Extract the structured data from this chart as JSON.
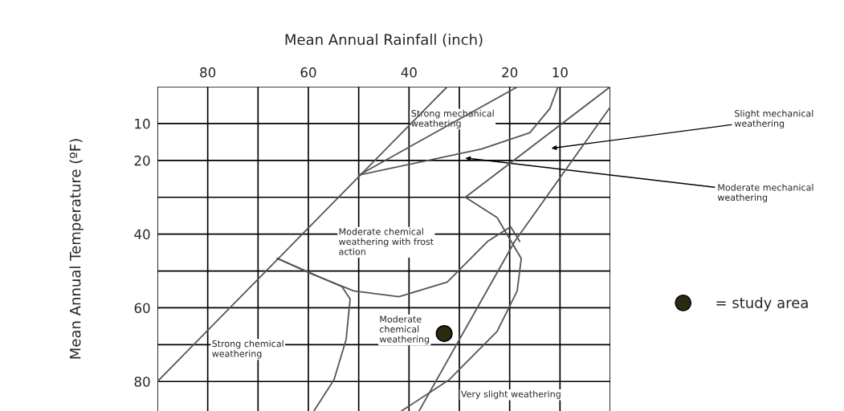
{
  "chart_data": {
    "type": "line",
    "xlabel": "Mean Annual Rainfall (inch)",
    "ylabel": "Mean Annual Temperature (ºF)",
    "xlim": [
      90,
      0
    ],
    "ylim": [
      88,
      0
    ],
    "xticks": [
      {
        "value": 90,
        "label": null
      },
      80,
      {
        "value": 70,
        "label": null
      },
      60,
      {
        "value": 50,
        "label": null
      },
      40,
      {
        "value": 30,
        "label": null
      },
      20,
      10,
      {
        "value": 0,
        "label": null
      }
    ],
    "yticks": [
      {
        "value": 0,
        "label": null
      },
      10,
      20,
      {
        "value": 30,
        "label": null
      },
      40,
      {
        "value": 50,
        "label": null
      },
      60,
      {
        "value": 70,
        "label": null
      },
      80
    ],
    "grid": true,
    "legend": "right",
    "marker": "none",
    "series": [
      {
        "color": "#555555",
        "x": [
          90,
          32.4
        ],
        "values": [
          80,
          0
        ]
      },
      {
        "color": "#555555",
        "x": [
          50,
          18.4
        ],
        "values": [
          24,
          0
        ]
      },
      {
        "color": "#555555",
        "x": [
          50,
          25.6,
          16,
          12,
          10.4
        ],
        "values": [
          24,
          16.9,
          12.5,
          5.9,
          0
        ]
      },
      {
        "color": "#555555",
        "x": [
          28.8,
          0
        ],
        "values": [
          30,
          0
        ]
      },
      {
        "color": "#555555",
        "x": [
          0,
          19,
          38
        ],
        "values": [
          5.5,
          42,
          88
        ]
      },
      {
        "color": "#555555",
        "x": [
          28.8,
          22.5,
          17.7,
          18.5,
          22.5,
          32,
          41.5
        ],
        "values": [
          30,
          35.5,
          46.6,
          55.4,
          66.4,
          79.5,
          88
        ]
      },
      {
        "color": "#555555",
        "x": [
          66.2,
          59,
          51,
          42,
          32.4,
          24.4,
          19.8,
          18
        ],
        "values": [
          46.6,
          51,
          55.4,
          57,
          53,
          42,
          38,
          42
        ]
      },
      {
        "color": "#555555",
        "x": [
          66.2,
          53.3,
          51.7,
          52.5,
          54.9,
          58.9
        ],
        "values": [
          46.6,
          54.3,
          57.6,
          68.6,
          79.5,
          88
        ]
      },
      {
        "type": "scatter",
        "name": "= study area",
        "color": "#2b2a10",
        "marker": "circle",
        "x": [
          33
        ],
        "values": [
          67
        ]
      }
    ],
    "annotations": [
      "Strong mechanical\nweathering",
      "Moderate chemical\nweathering with frost\naction",
      "Moderate\nchemical\nweathering",
      "Strong chemical\nweathering",
      "Very slight weathering",
      "Slight mechanical\nweathering",
      "Moderate mechanical\nweathering"
    ]
  }
}
